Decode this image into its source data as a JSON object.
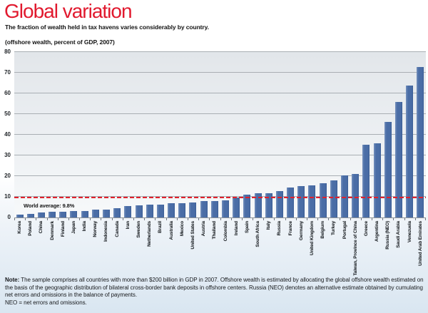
{
  "title": "Global variation",
  "subtitle": "The fraction of wealth held in tax havens varies considerably by country.",
  "axis_unit_label": "(offshore wealth, percent of GDP, 2007)",
  "world_average": {
    "label": "World average: 9.8%",
    "value": 9.8
  },
  "note": {
    "label": "Note:",
    "body": " The sample comprises all countries with more than $200 billion in GDP in 2007. Offshore wealth is estimated by allocating the global offshore wealth estimated on the basis of the geographic distribution of bilateral cross-border bank deposits in offshore centers. Russia (NEO) denotes an alternative estimate obtained by cumulating net errors and omissions in the balance of payments.",
    "footnote": "NEO = net errors and omissions."
  },
  "colors": {
    "title_red": "#e1192e",
    "bar_blue": "#4a6da6",
    "bar_highlight": "#7490bc",
    "bar_shadow": "#3c5e95",
    "reference_line_red": "#e0202c",
    "gridline_gray": "#a9aeb3",
    "background_bottom_blue": "#d9e6f1"
  },
  "chart_data": {
    "type": "bar",
    "title": "Global variation",
    "subtitle": "The fraction of wealth held in tax havens varies considerably by country.",
    "ylabel": "(offshore wealth, percent of GDP, 2007)",
    "ylim": [
      0,
      80
    ],
    "yticks": [
      0,
      10,
      20,
      30,
      40,
      50,
      60,
      70,
      80
    ],
    "grid": true,
    "categories": [
      "Korea",
      "Poland",
      "China",
      "Denmark",
      "Finland",
      "Japan",
      "India",
      "Norway",
      "Indonesia",
      "Canada",
      "Iran",
      "Sweden",
      "Netherlands",
      "Brazil",
      "Australia",
      "Mexico",
      "United States",
      "Austria",
      "Thailand",
      "Colombia",
      "Ireland",
      "Spain",
      "South Africa",
      "Italy",
      "Russia",
      "France",
      "Germany",
      "United Kingdom",
      "Belgium",
      "Turkey",
      "Portugal",
      "Taiwan, Province of China",
      "Greece",
      "Argentina",
      "Russia (NEO)",
      "Saudi Arabia",
      "Venezuela",
      "United Arab Emirates"
    ],
    "values": [
      1.3,
      1.7,
      2.4,
      2.8,
      2.9,
      3.0,
      3.1,
      3.7,
      3.8,
      4.6,
      5.4,
      5.9,
      6.1,
      6.3,
      6.8,
      7.0,
      7.2,
      7.9,
      8.0,
      8.3,
      9.8,
      11.0,
      11.6,
      11.7,
      12.8,
      14.6,
      15.2,
      15.5,
      16.5,
      17.9,
      20.5,
      21.2,
      35.3,
      35.8,
      46.3,
      55.7,
      63.8,
      72.8
    ],
    "reference_line": {
      "label": "World average: 9.8%",
      "value": 9.8,
      "style": "dashed",
      "color": "#e0202c"
    }
  }
}
